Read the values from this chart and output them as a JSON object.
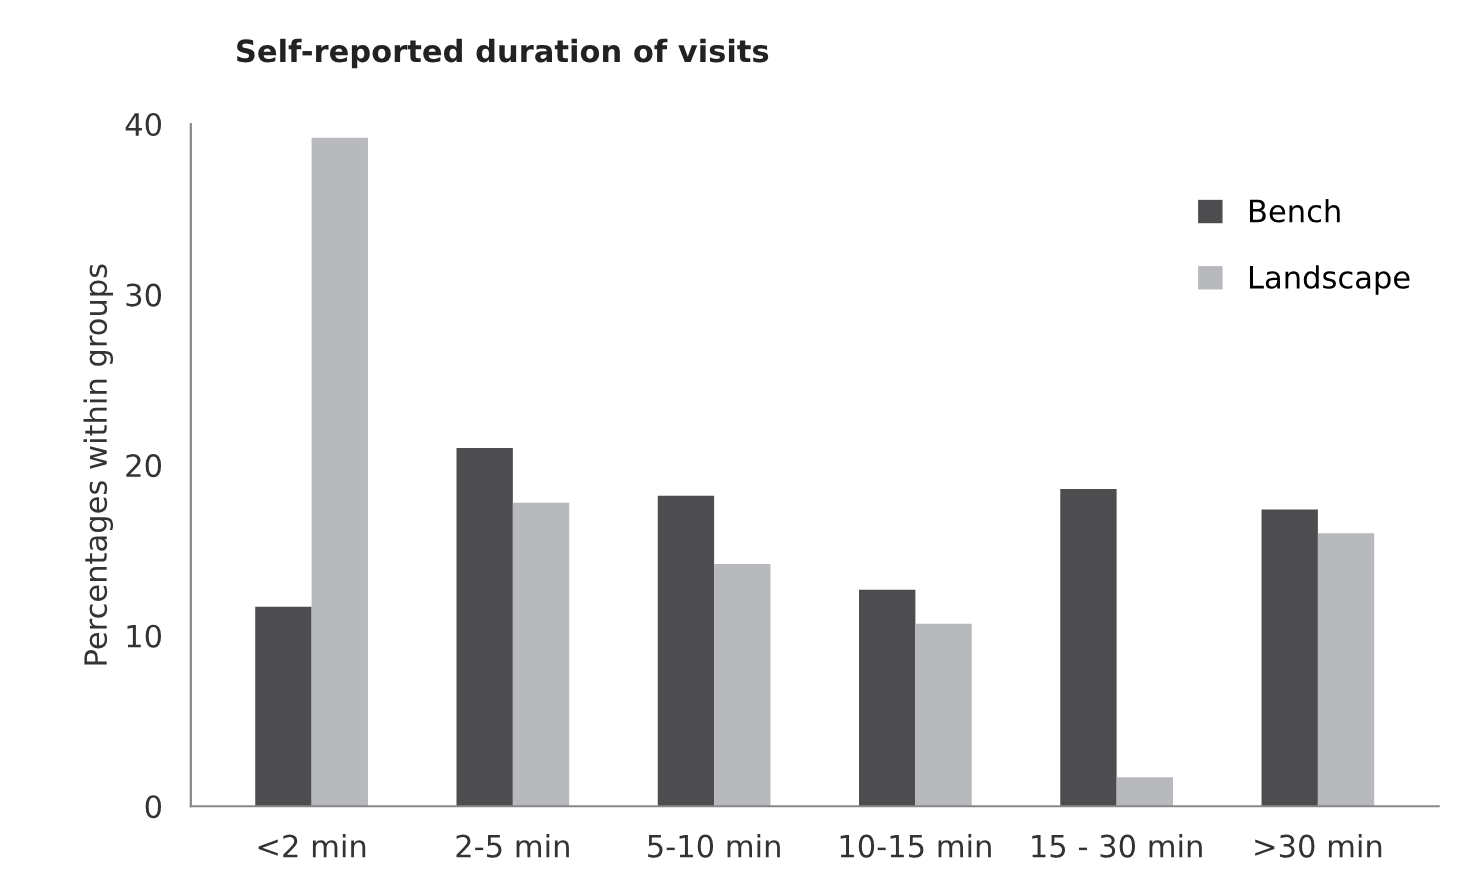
{
  "chart_data": {
    "type": "bar",
    "title": "Self-reported duration of visits",
    "ylabel": "Percentages within groups",
    "categories": [
      "<2 min",
      "2-5 min",
      "5-10 min",
      "10-15 min",
      "15 - 30 min",
      ">30 min"
    ],
    "series": [
      {
        "name": "Bench",
        "color": "#4d4d4f",
        "values": [
          11.7,
          21.0,
          18.2,
          12.7,
          18.6,
          17.4
        ]
      },
      {
        "name": "Landscape",
        "color": "#b8b9bd",
        "values": [
          39.2,
          17.8,
          14.2,
          10.7,
          1.7,
          16.0
        ]
      }
    ],
    "ylim": [
      0,
      40
    ],
    "yticks": [
      0,
      10,
      20,
      30,
      40
    ],
    "grid": false,
    "legend": "right"
  }
}
